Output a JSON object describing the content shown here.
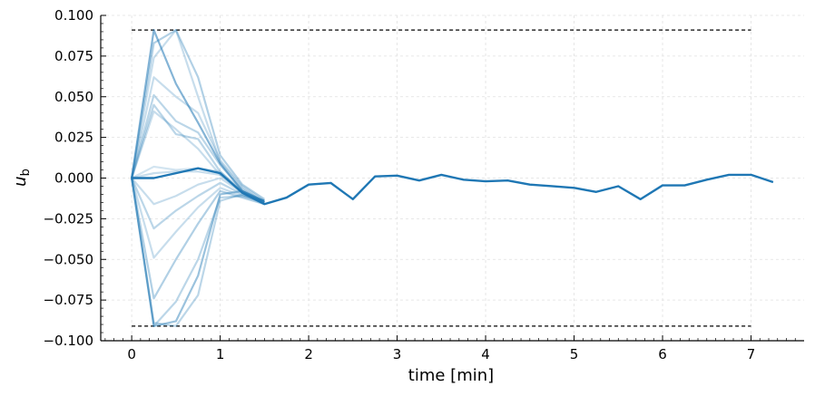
{
  "chart_data": {
    "type": "line",
    "title": "",
    "xlabel": "time [min]",
    "ylabel_main": "u",
    "ylabel_sub": "b",
    "xlim": [
      -0.35,
      7.6
    ],
    "ylim": [
      -0.1,
      0.1
    ],
    "xticks": [
      {
        "value": 0,
        "label": "0"
      },
      {
        "value": 1,
        "label": "1"
      },
      {
        "value": 2,
        "label": "2"
      },
      {
        "value": 3,
        "label": "3"
      },
      {
        "value": 4,
        "label": "4"
      },
      {
        "value": 5,
        "label": "5"
      },
      {
        "value": 6,
        "label": "6"
      },
      {
        "value": 7,
        "label": "7"
      }
    ],
    "yticks": [
      {
        "value": 0.1,
        "label": "0.100"
      },
      {
        "value": 0.075,
        "label": "0.075"
      },
      {
        "value": 0.05,
        "label": "0.050"
      },
      {
        "value": 0.025,
        "label": "0.025"
      },
      {
        "value": 0.0,
        "label": "0.000"
      },
      {
        "value": -0.025,
        "label": "−0.025"
      },
      {
        "value": -0.05,
        "label": "−0.050"
      },
      {
        "value": -0.075,
        "label": "−0.075"
      },
      {
        "value": -0.1,
        "label": "−0.100"
      }
    ],
    "grid": true,
    "color": "#1f77b4",
    "bounds": [
      0.091,
      -0.091
    ],
    "faded_series": [
      {
        "alpha": 0.55,
        "x": [
          0,
          0.25,
          0.5,
          0.75,
          1,
          1.25,
          1.5
        ],
        "values": [
          0,
          0.091,
          0.058,
          0.034,
          0.009,
          -0.008,
          -0.014
        ]
      },
      {
        "alpha": 0.35,
        "x": [
          0,
          0.25,
          0.5,
          0.75,
          1,
          1.25,
          1.5
        ],
        "values": [
          0,
          0.083,
          0.091,
          0.062,
          0.014,
          -0.004,
          -0.013
        ]
      },
      {
        "alpha": 0.25,
        "x": [
          0,
          0.25,
          0.5,
          0.75,
          1,
          1.25,
          1.5
        ],
        "values": [
          0,
          0.074,
          0.091,
          0.05,
          0.01,
          -0.006,
          -0.015
        ]
      },
      {
        "alpha": 0.25,
        "x": [
          0,
          0.25,
          0.5,
          0.75,
          1,
          1.25,
          1.5
        ],
        "values": [
          0,
          0.062,
          0.05,
          0.04,
          0.011,
          -0.005,
          -0.014
        ]
      },
      {
        "alpha": 0.3,
        "x": [
          0,
          0.25,
          0.5,
          0.75,
          1,
          1.25,
          1.5
        ],
        "values": [
          0,
          0.051,
          0.035,
          0.028,
          0.008,
          -0.007,
          -0.015
        ]
      },
      {
        "alpha": 0.3,
        "x": [
          0,
          0.25,
          0.5,
          0.75,
          1,
          1.25,
          1.5
        ],
        "values": [
          0,
          0.045,
          0.027,
          0.024,
          0.004,
          -0.008,
          -0.016
        ]
      },
      {
        "alpha": 0.25,
        "x": [
          0,
          0.25,
          0.5,
          0.75,
          1,
          1.25,
          1.5
        ],
        "values": [
          0,
          0.041,
          0.03,
          0.018,
          0.002,
          -0.009,
          -0.015
        ]
      },
      {
        "alpha": 0.2,
        "x": [
          0,
          0.25,
          0.5,
          0.75,
          1,
          1.25,
          1.5
        ],
        "values": [
          0,
          0.007,
          0.005,
          0.006,
          0.004,
          -0.009,
          -0.014
        ]
      },
      {
        "alpha": 0.25,
        "x": [
          0,
          0.25,
          0.5,
          0.75,
          1,
          1.25,
          1.5
        ],
        "values": [
          0,
          0.003,
          0.004,
          0.004,
          0.002,
          -0.008,
          -0.015
        ]
      },
      {
        "alpha": 0.25,
        "x": [
          0,
          0.25,
          0.5,
          0.75,
          1,
          1.25,
          1.5
        ],
        "values": [
          0,
          -0.016,
          -0.011,
          -0.004,
          0.0,
          -0.009,
          -0.015
        ]
      },
      {
        "alpha": 0.3,
        "x": [
          0,
          0.25,
          0.5,
          0.75,
          1,
          1.25,
          1.5
        ],
        "values": [
          0,
          -0.031,
          -0.02,
          -0.011,
          -0.003,
          -0.01,
          -0.016
        ]
      },
      {
        "alpha": 0.25,
        "x": [
          0,
          0.25,
          0.5,
          0.75,
          1,
          1.25,
          1.5
        ],
        "values": [
          0,
          -0.049,
          -0.033,
          -0.018,
          -0.006,
          -0.011,
          -0.015
        ]
      },
      {
        "alpha": 0.35,
        "x": [
          0,
          0.25,
          0.5,
          0.75,
          1,
          1.25,
          1.5
        ],
        "values": [
          0,
          -0.074,
          -0.05,
          -0.028,
          -0.008,
          -0.012,
          -0.016
        ]
      },
      {
        "alpha": 0.3,
        "x": [
          0,
          0.25,
          0.5,
          0.75,
          1,
          1.25,
          1.5
        ],
        "values": [
          0,
          -0.091,
          -0.076,
          -0.05,
          -0.012,
          -0.011,
          -0.014
        ]
      },
      {
        "alpha": 0.45,
        "x": [
          0,
          0.25,
          0.5,
          0.75,
          1,
          1.25,
          1.5
        ],
        "values": [
          0,
          -0.091,
          -0.088,
          -0.06,
          -0.01,
          -0.008,
          -0.015
        ]
      },
      {
        "alpha": 0.3,
        "x": [
          0,
          0.25,
          0.5,
          0.75,
          1,
          1.25,
          1.5
        ],
        "values": [
          0,
          -0.089,
          -0.091,
          -0.072,
          -0.014,
          -0.01,
          -0.014
        ]
      }
    ],
    "main_series": {
      "x": [
        0,
        0.25,
        0.5,
        0.75,
        1,
        1.25,
        1.5,
        1.75,
        2,
        2.25,
        2.5,
        2.75,
        3,
        3.25,
        3.5,
        3.75,
        4,
        4.25,
        4.5,
        4.75,
        5,
        5.25,
        5.5,
        5.75,
        6,
        6.25,
        6.5,
        6.75,
        7,
        7.25
      ],
      "values": [
        0,
        0.0,
        0.003,
        0.006,
        0.003,
        -0.009,
        -0.016,
        -0.012,
        -0.004,
        -0.003,
        -0.013,
        0.001,
        0.0015,
        -0.0015,
        0.002,
        -0.001,
        -0.002,
        -0.0015,
        -0.004,
        -0.005,
        -0.006,
        -0.0085,
        -0.005,
        -0.013,
        -0.0045,
        -0.0045,
        -0.001,
        0.002,
        0.002,
        -0.0025
      ]
    }
  }
}
